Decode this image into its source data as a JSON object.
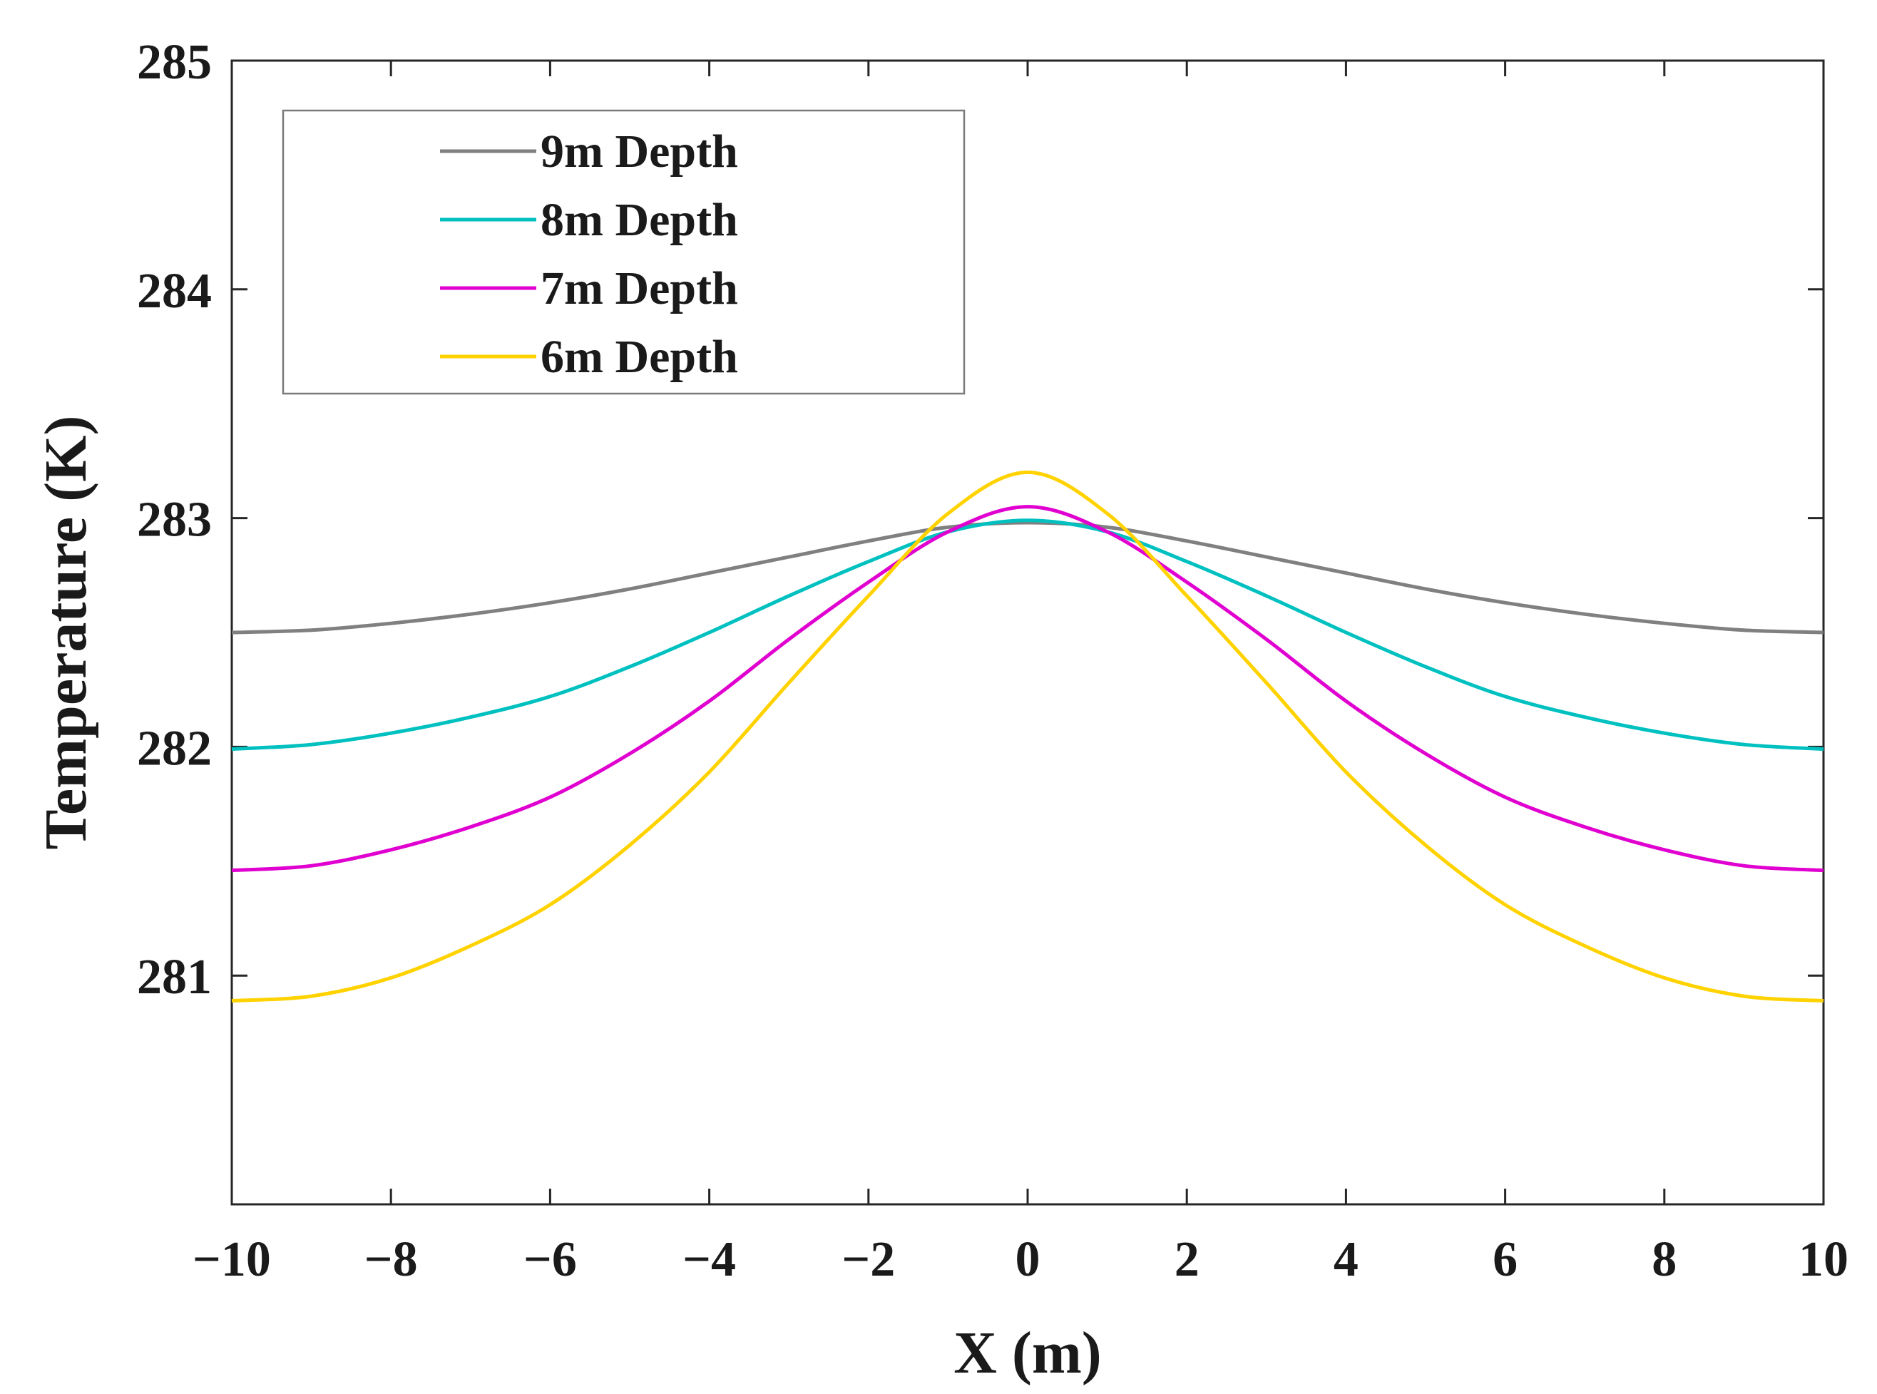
{
  "chart_data": {
    "type": "line",
    "title": "",
    "xlabel": "X (m)",
    "ylabel": "Temperature (K)",
    "xlim": [
      -10,
      10
    ],
    "ylim": [
      280,
      285
    ],
    "xticks": [
      -10,
      -8,
      -6,
      -4,
      -2,
      0,
      2,
      4,
      6,
      8,
      10
    ],
    "xtick_labels": [
      "−10",
      "−8",
      "−6",
      "−4",
      "−2",
      "0",
      "2",
      "4",
      "6",
      "8",
      "10"
    ],
    "yticks": [
      281,
      282,
      283,
      284,
      285
    ],
    "ytick_labels": [
      "281",
      "282",
      "283",
      "284",
      "285"
    ],
    "grid": false,
    "legend_position": "top-left",
    "x": [
      -10,
      -9,
      -8,
      -7,
      -6,
      -5,
      -4,
      -3,
      -2,
      -1,
      0,
      1,
      2,
      3,
      4,
      5,
      6,
      7,
      8,
      9,
      10
    ],
    "series": [
      {
        "name": "9m Depth",
        "color": "#808080",
        "values": [
          282.5,
          282.51,
          282.54,
          282.58,
          282.63,
          282.69,
          282.76,
          282.83,
          282.9,
          282.96,
          282.98,
          282.96,
          282.9,
          282.83,
          282.76,
          282.69,
          282.63,
          282.58,
          282.54,
          282.51,
          282.5
        ]
      },
      {
        "name": "8m Depth",
        "color": "#00C0C0",
        "values": [
          281.99,
          282.01,
          282.06,
          282.13,
          282.22,
          282.35,
          282.5,
          282.66,
          282.81,
          282.94,
          282.99,
          282.94,
          282.81,
          282.66,
          282.5,
          282.35,
          282.22,
          282.13,
          282.06,
          282.01,
          281.99
        ]
      },
      {
        "name": "7m Depth",
        "color": "#E000D0",
        "values": [
          281.46,
          281.48,
          281.55,
          281.65,
          281.78,
          281.97,
          282.2,
          282.47,
          282.72,
          282.94,
          283.05,
          282.94,
          282.72,
          282.47,
          282.2,
          281.97,
          281.78,
          281.65,
          281.55,
          281.48,
          281.46
        ]
      },
      {
        "name": "6m Depth",
        "color": "#FFD200",
        "values": [
          280.89,
          280.91,
          280.99,
          281.13,
          281.31,
          281.57,
          281.89,
          282.28,
          282.66,
          283.02,
          283.2,
          283.02,
          282.66,
          282.28,
          281.89,
          281.57,
          281.31,
          281.13,
          280.99,
          280.91,
          280.89
        ]
      }
    ]
  }
}
